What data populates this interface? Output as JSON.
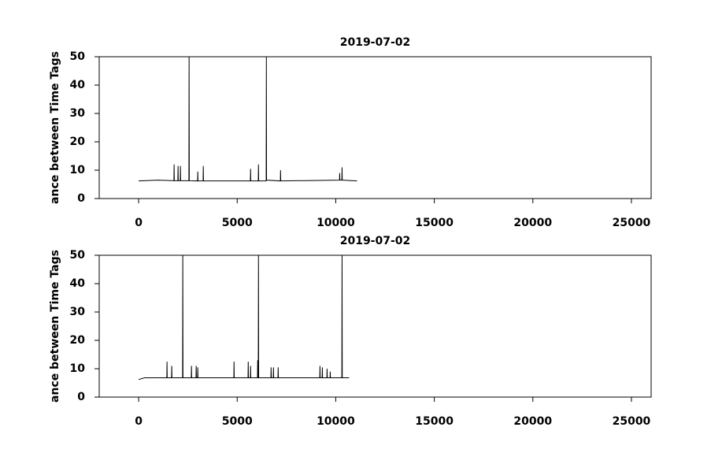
{
  "chart_data": [
    {
      "type": "line",
      "title": "2019-07-02",
      "y_label": "ance between Time Tags",
      "color": "#000000",
      "x": [
        0,
        1000,
        1790,
        1800,
        1810,
        1990,
        2000,
        2010,
        2110,
        2120,
        2130,
        2550,
        2560,
        2570,
        2990,
        3000,
        3010,
        3270,
        3280,
        3290,
        5670,
        5680,
        5690,
        6070,
        6080,
        6090,
        6470,
        6480,
        6490,
        7190,
        7200,
        7210,
        10190,
        10200,
        10210,
        10310,
        10320,
        10330,
        11080
      ],
      "values": [
        6.2,
        6.5,
        6.3,
        12,
        6.3,
        6.3,
        11.5,
        6.3,
        6.3,
        11.5,
        6.3,
        6.3,
        50,
        6.3,
        6.2,
        9.5,
        6.2,
        6.2,
        11.5,
        6.2,
        6.2,
        10.5,
        6.2,
        6.2,
        12,
        6.2,
        6.2,
        50,
        6.5,
        6.2,
        10,
        6.2,
        6.5,
        9,
        6.5,
        6.5,
        11,
        6.5,
        6.2
      ],
      "xlim": [
        -2000,
        26000
      ],
      "xticks": [
        0,
        5000,
        10000,
        15000,
        20000,
        25000
      ],
      "ylim": [
        0,
        50
      ],
      "yticks": [
        0,
        10,
        20,
        30,
        40,
        50
      ]
    },
    {
      "type": "line",
      "title": "2019-07-02",
      "y_label": "ance between Time Tags",
      "color": "#000000",
      "x": [
        0,
        300,
        1430,
        1440,
        1450,
        1670,
        1680,
        1690,
        2230,
        2240,
        2250,
        2670,
        2680,
        2690,
        2910,
        2920,
        2930,
        2990,
        3000,
        3010,
        4830,
        4840,
        4850,
        5550,
        5560,
        5570,
        5670,
        5680,
        5690,
        6030,
        6040,
        6050,
        6070,
        6080,
        6090,
        6710,
        6720,
        6730,
        6830,
        6840,
        6850,
        7070,
        7080,
        7090,
        9190,
        9200,
        9210,
        9310,
        9320,
        9330,
        9550,
        9560,
        9570,
        9710,
        9720,
        9730,
        10310,
        10320,
        10330,
        10680
      ],
      "values": [
        6.2,
        6.8,
        6.8,
        12.5,
        6.8,
        6.8,
        11,
        6.8,
        6.8,
        50,
        6.8,
        6.8,
        11,
        6.8,
        6.8,
        11,
        6.8,
        6.8,
        10.5,
        6.8,
        6.8,
        12.5,
        6.8,
        6.8,
        12.5,
        6.8,
        6.8,
        11,
        6.8,
        6.8,
        13,
        6.8,
        6.8,
        50,
        6.8,
        6.8,
        10.5,
        6.8,
        6.8,
        10.5,
        6.8,
        6.8,
        10.5,
        6.8,
        6.8,
        11,
        6.8,
        6.8,
        10.5,
        6.8,
        6.8,
        10,
        6.8,
        6.8,
        9,
        6.8,
        6.8,
        50,
        6.8,
        6.8
      ],
      "xlim": [
        -2000,
        26000
      ],
      "xticks": [
        0,
        5000,
        10000,
        15000,
        20000,
        25000
      ],
      "ylim": [
        0,
        50
      ],
      "yticks": [
        0,
        10,
        20,
        30,
        40,
        50
      ]
    }
  ]
}
